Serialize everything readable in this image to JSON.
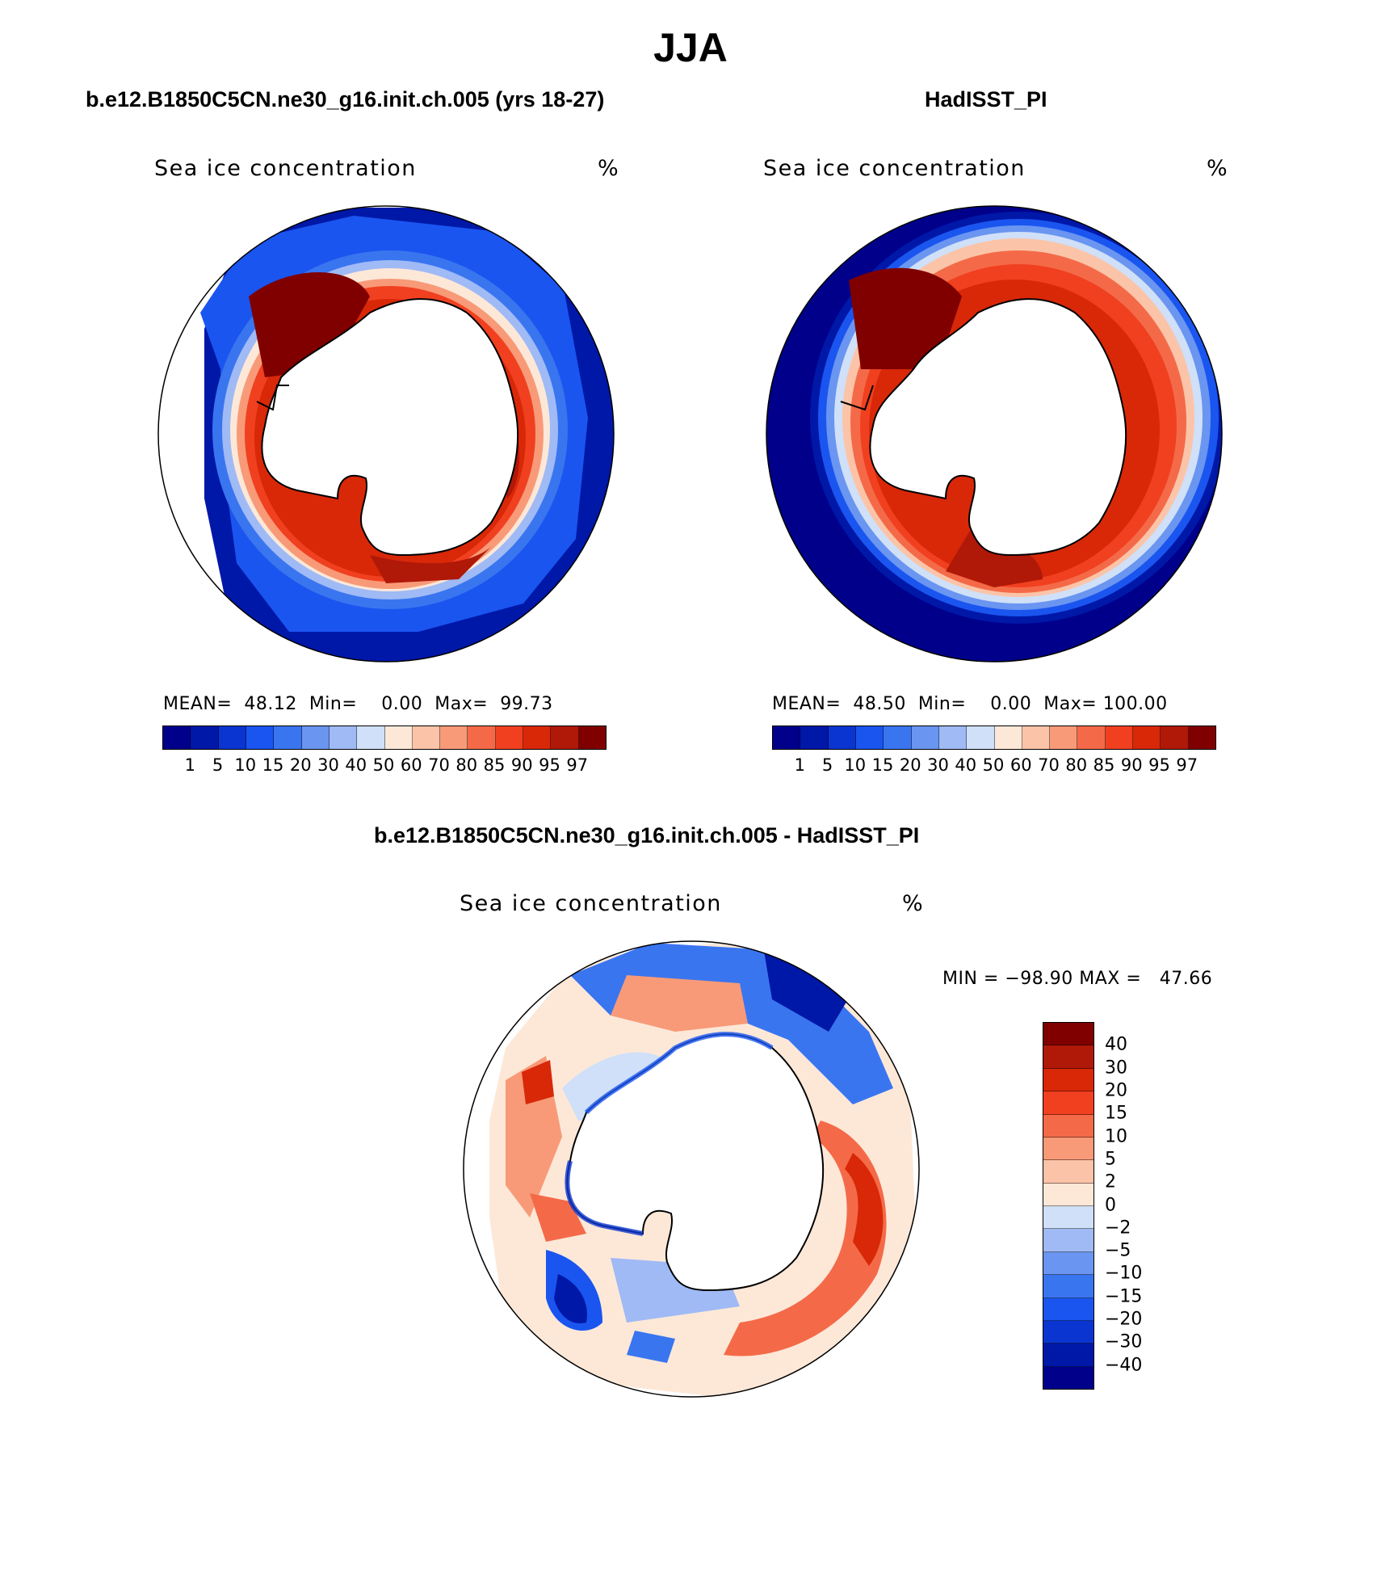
{
  "main_title": "JJA",
  "panels": [
    {
      "title": "b.e12.B1850C5CN.ne30_g16.init.ch.005 (yrs 18-27)",
      "variable": "Sea ice concentration",
      "units": "%",
      "stats": {
        "mean_label": "MEAN=",
        "mean": "48.12",
        "min_label": "Min=",
        "min": "0.00",
        "max_label": "Max=",
        "max": "99.73"
      }
    },
    {
      "title": "HadISST_PI",
      "variable": "Sea ice concentration",
      "units": "%",
      "stats": {
        "mean_label": "MEAN=",
        "mean": "48.50",
        "min_label": "Min=",
        "min": "0.00",
        "max_label": "Max=",
        "max": "100.00"
      }
    },
    {
      "title": "b.e12.B1850C5CN.ne30_g16.init.ch.005 - HadISST_PI",
      "variable": "Sea ice concentration",
      "units": "%",
      "stats": {
        "text": "MIN = −98.90 MAX =   47.66"
      }
    }
  ],
  "colorbar_abs": {
    "labels": [
      "1",
      "5",
      "10",
      "15",
      "20",
      "30",
      "40",
      "50",
      "60",
      "70",
      "80",
      "85",
      "90",
      "95",
      "97"
    ],
    "colors": [
      "#00008b",
      "#0018a8",
      "#0a35d0",
      "#1a55f0",
      "#3a75f0",
      "#6a95f0",
      "#9fbaf5",
      "#cfe0f8",
      "#fde8d8",
      "#fbc4a8",
      "#f89a78",
      "#f46a48",
      "#f04020",
      "#d82808",
      "#b01808",
      "#800000"
    ]
  },
  "colorbar_diff": {
    "labels": [
      "40",
      "30",
      "20",
      "15",
      "10",
      "5",
      "2",
      "0",
      "−2",
      "−5",
      "−10",
      "−15",
      "−20",
      "−30",
      "−40"
    ],
    "colors": [
      "#800000",
      "#b01808",
      "#d82808",
      "#f04020",
      "#f46a48",
      "#f89a78",
      "#fbc4a8",
      "#fde8d8",
      "#cfe0f8",
      "#9fbaf5",
      "#6a95f0",
      "#3a75f0",
      "#1a55f0",
      "#0a35d0",
      "#0018a8",
      "#00008b"
    ]
  }
}
